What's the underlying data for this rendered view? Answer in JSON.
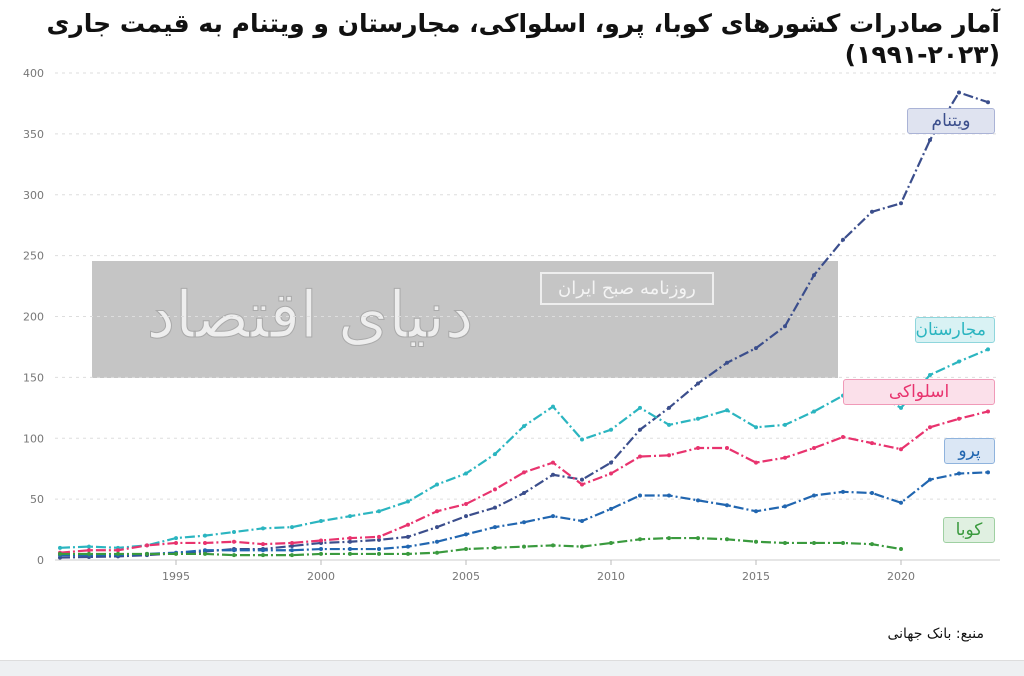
{
  "title": "آمار صادرات کشورهای کوبا، پرو، اسلواکی، مجارستان و ویتنام به قیمت جاری (۲۰۲۳-۱۹۹۱)",
  "source": "منبع: بانک جهانی",
  "watermark": {
    "logo": "دنیای اقتصاد",
    "subtitle": "روزنامه صبح ایران"
  },
  "chart_data": {
    "type": "line",
    "title": "آمار صادرات کشورهای کوبا، پرو، اسلواکی، مجارستان و ویتنام به قیمت جاری (۲۰۲۳-۱۹۹۱)",
    "xlim": [
      1991,
      2023
    ],
    "ylim": [
      0,
      400
    ],
    "yticks": [
      0,
      50,
      100,
      150,
      200,
      250,
      300,
      350,
      400
    ],
    "xticks": [
      1995,
      2000,
      2005,
      2010,
      2015,
      2020
    ],
    "grid": true,
    "legend": "inline-right",
    "x": [
      1991,
      1992,
      1993,
      1994,
      1995,
      1996,
      1997,
      1998,
      1999,
      2000,
      2001,
      2002,
      2003,
      2004,
      2005,
      2006,
      2007,
      2008,
      2009,
      2010,
      2011,
      2012,
      2013,
      2014,
      2015,
      2016,
      2017,
      2018,
      2019,
      2020,
      2021,
      2022,
      2023
    ],
    "series": [
      {
        "name": "ویتنام",
        "color": "#3b4e8c",
        "values": [
          2,
          2.5,
          3,
          4,
          5.5,
          7,
          9,
          9,
          11.5,
          14,
          15,
          16.5,
          19,
          27,
          36,
          43,
          55,
          70,
          66,
          80,
          107,
          125,
          145,
          162,
          174,
          192,
          234,
          263,
          286,
          293,
          345,
          384,
          376
        ]
      },
      {
        "name": "مجارستان",
        "color": "#2bb5c0",
        "values": [
          10,
          11,
          10,
          12,
          18,
          20,
          23,
          26,
          27,
          32,
          36,
          40,
          48,
          62,
          71,
          87,
          110,
          126,
          99,
          107,
          125,
          111,
          116,
          123,
          109,
          111,
          122,
          135,
          138,
          125,
          152,
          163,
          173
        ]
      },
      {
        "name": "اسلواکی",
        "color": "#e8336e",
        "values": [
          6,
          8,
          8,
          12,
          14,
          14,
          15,
          13,
          14,
          16,
          18,
          19,
          29,
          40,
          46,
          58,
          72,
          80,
          62,
          71,
          85,
          86,
          92,
          92,
          80,
          84,
          92,
          101,
          96,
          91,
          109,
          116,
          122
        ]
      },
      {
        "name": "پرو",
        "color": "#2166b0",
        "values": [
          4,
          4,
          4,
          5,
          6,
          8,
          8,
          8,
          8,
          9,
          9,
          9,
          11,
          15,
          21,
          27,
          31,
          36,
          32,
          42,
          53,
          53,
          49,
          45,
          40,
          44,
          53,
          56,
          55,
          47,
          66,
          71,
          72
        ]
      },
      {
        "name": "کوبا",
        "color": "#3a9a3e",
        "values": [
          5,
          5,
          5,
          5,
          5,
          5,
          4,
          4,
          4,
          5,
          5,
          5,
          5,
          6,
          9,
          10,
          11,
          12,
          11,
          14,
          17,
          18,
          18,
          17,
          15,
          14,
          14,
          14,
          13,
          9,
          null,
          null,
          null
        ]
      }
    ]
  }
}
